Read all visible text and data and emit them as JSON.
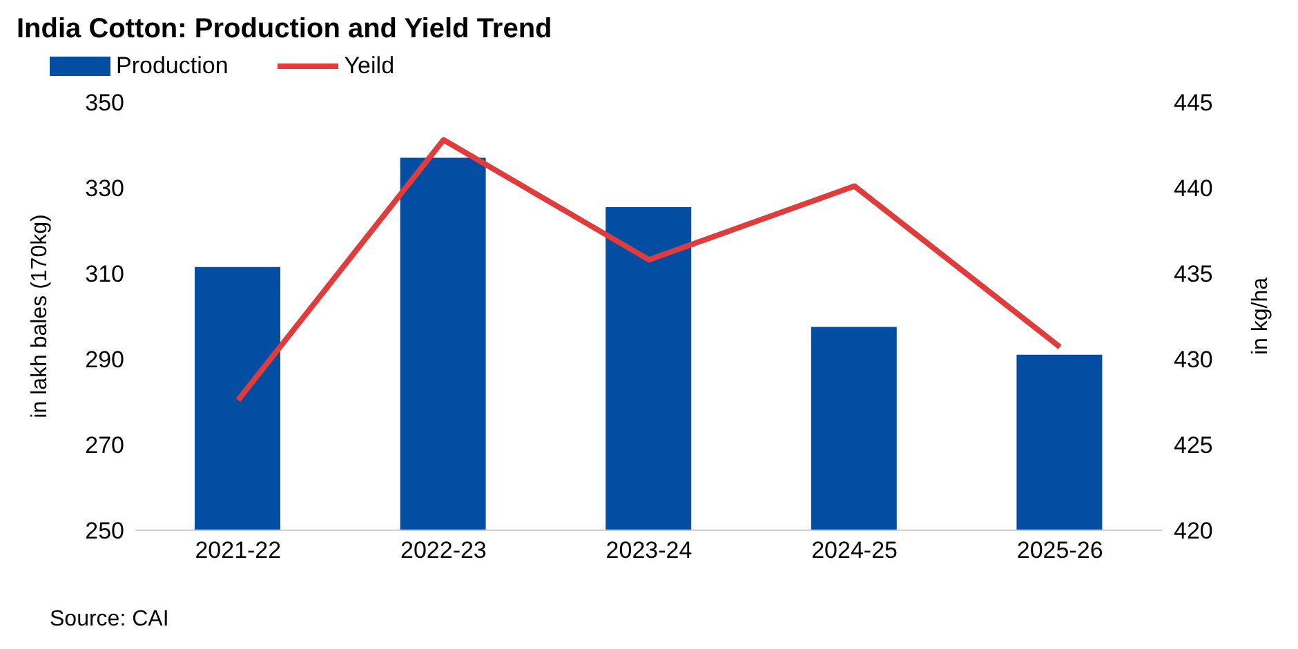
{
  "chart_data": {
    "type": "bar",
    "title": "India Cotton: Production and Yield Trend",
    "categories": [
      "2021-22",
      "2022-23",
      "2023-24",
      "2024-25",
      "2025-26"
    ],
    "series": [
      {
        "name": "Production",
        "color": "#034ea2",
        "values": [
          311.5,
          337,
          325.5,
          297.5,
          291
        ]
      },
      {
        "name": "Yeild",
        "type": "line",
        "axis": "y2",
        "color": "#e03c3c",
        "marker": "none",
        "values": [
          427.6,
          442.8,
          435.8,
          440.1,
          430.7
        ]
      }
    ],
    "ylabel": "in lakh bales (170kg)",
    "y2label": "in kg/ha",
    "ylim": [
      250,
      350
    ],
    "yticks": [
      250,
      270,
      290,
      310,
      330,
      350
    ],
    "y2lim": [
      420,
      445
    ],
    "y2ticks": [
      420,
      425,
      430,
      435,
      440,
      445
    ],
    "legend": "top left",
    "annotations": [
      "Source: CAI"
    ]
  }
}
